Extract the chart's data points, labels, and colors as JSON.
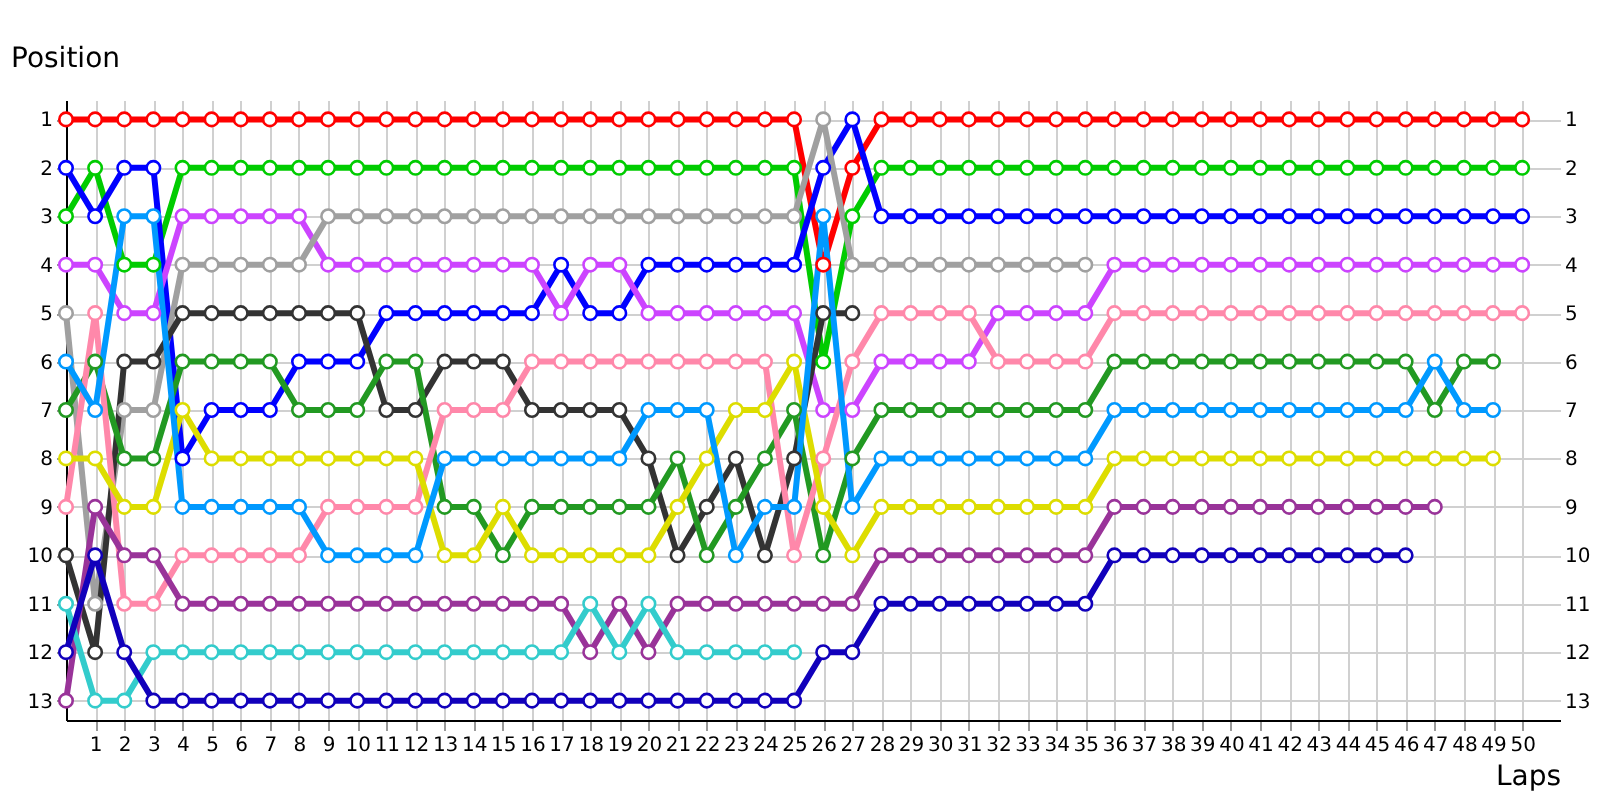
{
  "chart_data": {
    "type": "line",
    "xlabel": "Laps",
    "ylabel": "Position",
    "x": [
      0,
      1,
      2,
      3,
      4,
      5,
      6,
      7,
      8,
      9,
      10,
      11,
      12,
      13,
      14,
      15,
      16,
      17,
      18,
      19,
      20,
      21,
      22,
      23,
      24,
      25,
      26,
      27,
      28,
      29,
      30,
      31,
      32,
      33,
      34,
      35,
      36,
      37,
      38,
      39,
      40,
      41,
      42,
      43,
      44,
      45,
      46,
      47,
      48,
      49,
      50
    ],
    "xlim": [
      0,
      51.3
    ],
    "xticks": [
      1,
      2,
      3,
      4,
      5,
      6,
      7,
      8,
      9,
      10,
      11,
      12,
      13,
      14,
      15,
      16,
      17,
      18,
      19,
      20,
      21,
      22,
      23,
      24,
      25,
      26,
      27,
      28,
      29,
      30,
      31,
      32,
      33,
      34,
      35,
      36,
      37,
      38,
      39,
      40,
      41,
      42,
      43,
      44,
      45,
      46,
      47,
      48,
      49,
      50
    ],
    "ylim": [
      13.4,
      0.6
    ],
    "yticks": [
      1,
      2,
      3,
      4,
      5,
      6,
      7,
      8,
      9,
      10,
      11,
      12,
      13
    ],
    "y2lim": [
      13.4,
      0.6
    ],
    "y2ticks": [
      1,
      2,
      3,
      4,
      5,
      6,
      7,
      8,
      9,
      10,
      11,
      12,
      13
    ],
    "grid": true,
    "legend": false,
    "marker": "circle",
    "line_style": "solid",
    "series": [
      {
        "color": "#ff0000",
        "values": [
          1,
          1,
          1,
          1,
          1,
          1,
          1,
          1,
          1,
          1,
          1,
          1,
          1,
          1,
          1,
          1,
          1,
          1,
          1,
          1,
          1,
          1,
          1,
          1,
          1,
          1,
          4,
          2,
          1,
          1,
          1,
          1,
          1,
          1,
          1,
          1,
          1,
          1,
          1,
          1,
          1,
          1,
          1,
          1,
          1,
          1,
          1,
          1,
          1,
          1,
          1
        ]
      },
      {
        "color": "#00cc00",
        "values": [
          3,
          2,
          4,
          4,
          2,
          2,
          2,
          2,
          2,
          2,
          2,
          2,
          2,
          2,
          2,
          2,
          2,
          2,
          2,
          2,
          2,
          2,
          2,
          2,
          2,
          2,
          6,
          3,
          2,
          2,
          2,
          2,
          2,
          2,
          2,
          2,
          2,
          2,
          2,
          2,
          2,
          2,
          2,
          2,
          2,
          2,
          2,
          2,
          2,
          2,
          2
        ]
      },
      {
        "color": "#0000ff",
        "values": [
          2,
          3,
          2,
          2,
          8,
          7,
          7,
          7,
          6,
          6,
          6,
          5,
          5,
          5,
          5,
          5,
          5,
          4,
          5,
          5,
          4,
          4,
          4,
          4,
          4,
          4,
          2,
          1,
          3,
          3,
          3,
          3,
          3,
          3,
          3,
          3,
          3,
          3,
          3,
          3,
          3,
          3,
          3,
          3,
          3,
          3,
          3,
          3,
          3,
          3,
          3
        ]
      },
      {
        "color": "#cc44ff",
        "values": [
          4,
          4,
          5,
          5,
          3,
          3,
          3,
          3,
          3,
          4,
          4,
          4,
          4,
          4,
          4,
          4,
          4,
          5,
          4,
          4,
          5,
          5,
          5,
          5,
          5,
          5,
          7,
          7,
          6,
          6,
          6,
          6,
          5,
          5,
          5,
          5,
          4,
          4,
          4,
          4,
          4,
          4,
          4,
          4,
          4,
          4,
          4,
          4,
          4,
          4,
          4
        ]
      },
      {
        "color": "#a0a0a0",
        "values": [
          5,
          11,
          7,
          7,
          4,
          4,
          4,
          4,
          4,
          3,
          3,
          3,
          3,
          3,
          3,
          3,
          3,
          3,
          3,
          3,
          3,
          3,
          3,
          3,
          3,
          3,
          1,
          4,
          4,
          4,
          4,
          4,
          4,
          4,
          4,
          4,
          null,
          null,
          null,
          null,
          null,
          null,
          null,
          null,
          null,
          null,
          null,
          null,
          null,
          null,
          null
        ]
      },
      {
        "color": "#333333",
        "values": [
          10,
          12,
          6,
          6,
          5,
          5,
          5,
          5,
          5,
          5,
          5,
          7,
          7,
          6,
          6,
          6,
          7,
          7,
          7,
          7,
          8,
          10,
          9,
          8,
          10,
          8,
          5,
          5,
          null,
          null,
          null,
          null,
          null,
          null,
          null,
          null,
          null,
          null,
          null,
          null,
          null,
          null,
          null,
          null,
          null,
          null,
          null,
          null,
          null,
          null,
          null
        ]
      },
      {
        "color": "#229922",
        "values": [
          7,
          6,
          8,
          8,
          6,
          6,
          6,
          6,
          7,
          7,
          7,
          6,
          6,
          9,
          9,
          10,
          9,
          9,
          9,
          9,
          9,
          8,
          10,
          9,
          8,
          7,
          10,
          8,
          7,
          7,
          7,
          7,
          7,
          7,
          7,
          7,
          6,
          6,
          6,
          6,
          6,
          6,
          6,
          6,
          6,
          6,
          6,
          7,
          6,
          6,
          null
        ]
      },
      {
        "color": "#ff88aa",
        "values": [
          9,
          5,
          11,
          11,
          10,
          10,
          10,
          10,
          10,
          9,
          9,
          9,
          9,
          7,
          7,
          7,
          6,
          6,
          6,
          6,
          6,
          6,
          6,
          6,
          6,
          10,
          8,
          6,
          5,
          5,
          5,
          5,
          6,
          6,
          6,
          6,
          5,
          5,
          5,
          5,
          5,
          5,
          5,
          5,
          5,
          5,
          5,
          5,
          5,
          5,
          5
        ]
      },
      {
        "color": "#dddd00",
        "values": [
          8,
          8,
          9,
          9,
          7,
          8,
          8,
          8,
          8,
          8,
          8,
          8,
          8,
          10,
          10,
          9,
          10,
          10,
          10,
          10,
          10,
          9,
          8,
          7,
          7,
          6,
          9,
          10,
          9,
          9,
          9,
          9,
          9,
          9,
          9,
          9,
          8,
          8,
          8,
          8,
          8,
          8,
          8,
          8,
          8,
          8,
          8,
          8,
          8,
          8,
          null
        ]
      },
      {
        "color": "#0099ff",
        "values": [
          6,
          7,
          3,
          3,
          9,
          9,
          9,
          9,
          9,
          10,
          10,
          10,
          10,
          8,
          8,
          8,
          8,
          8,
          8,
          8,
          7,
          7,
          7,
          10,
          9,
          9,
          3,
          9,
          8,
          8,
          8,
          8,
          8,
          8,
          8,
          8,
          7,
          7,
          7,
          7,
          7,
          7,
          7,
          7,
          7,
          7,
          7,
          6,
          7,
          7,
          null
        ]
      },
      {
        "color": "#993399",
        "values": [
          13,
          9,
          10,
          10,
          11,
          11,
          11,
          11,
          11,
          11,
          11,
          11,
          11,
          11,
          11,
          11,
          11,
          11,
          12,
          11,
          12,
          11,
          11,
          11,
          11,
          11,
          11,
          11,
          10,
          10,
          10,
          10,
          10,
          10,
          10,
          10,
          9,
          9,
          9,
          9,
          9,
          9,
          9,
          9,
          9,
          9,
          9,
          9,
          null,
          null,
          null
        ]
      },
      {
        "color": "#33cccc",
        "values": [
          11,
          13,
          13,
          12,
          12,
          12,
          12,
          12,
          12,
          12,
          12,
          12,
          12,
          12,
          12,
          12,
          12,
          12,
          11,
          12,
          11,
          12,
          12,
          12,
          12,
          12,
          null,
          null,
          null,
          null,
          null,
          null,
          null,
          null,
          null,
          null,
          null,
          null,
          null,
          null,
          null,
          null,
          null,
          null,
          null,
          null,
          null,
          null,
          null,
          null,
          null
        ]
      },
      {
        "color": "#1100bb",
        "values": [
          12,
          10,
          12,
          13,
          13,
          13,
          13,
          13,
          13,
          13,
          13,
          13,
          13,
          13,
          13,
          13,
          13,
          13,
          13,
          13,
          13,
          13,
          13,
          13,
          13,
          13,
          12,
          12,
          11,
          11,
          11,
          11,
          11,
          11,
          11,
          11,
          10,
          10,
          10,
          10,
          10,
          10,
          10,
          10,
          10,
          10,
          10,
          null,
          null,
          null,
          null
        ]
      }
    ]
  }
}
